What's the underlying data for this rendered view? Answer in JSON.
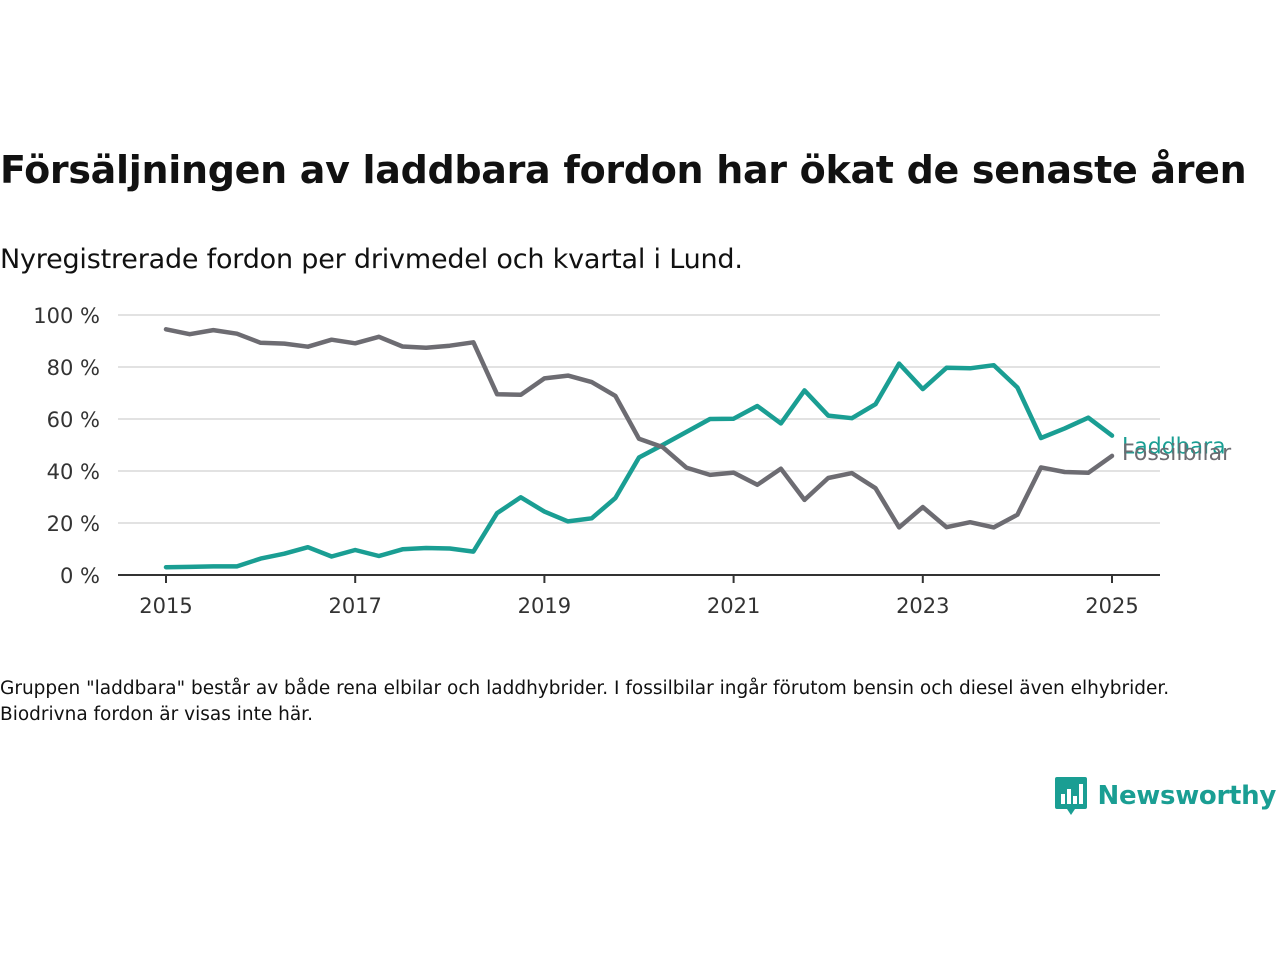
{
  "title": "Försäljningen av laddbara fordon har ökat de senaste åren",
  "subtitle": "Nyregistrerade fordon per drivmedel och kvartal i Lund.",
  "note": "Gruppen \"laddbara\" består av både rena elbilar och laddhybrider. I fossilbilar ingår förutom bensin och diesel även elhybrider. Biodrivna fordon är visas inte här.",
  "brand": {
    "name": "Newsworthy",
    "icon": "newsworthy-logo-icon",
    "color": "#1a9e93"
  },
  "chart_data": {
    "type": "line",
    "title": "",
    "xlabel": "",
    "ylabel": "",
    "ylim": [
      0,
      100
    ],
    "xlim": [
      2014.6,
      2025.5
    ],
    "yticks": [
      0,
      20,
      40,
      60,
      80,
      100
    ],
    "ytick_labels": [
      "0 %",
      "20 %",
      "40 %",
      "60 %",
      "80 %",
      "100 %"
    ],
    "xticks": [
      2015,
      2017,
      2019,
      2021,
      2023,
      2025
    ],
    "xtick_labels": [
      "2015",
      "2017",
      "2019",
      "2021",
      "2023",
      "2025"
    ],
    "grid": "horizontal",
    "legend": "direct labels at line ends",
    "x": [
      2015.0,
      2015.25,
      2015.5,
      2015.75,
      2016.0,
      2016.25,
      2016.5,
      2016.75,
      2017.0,
      2017.25,
      2017.5,
      2017.75,
      2018.0,
      2018.25,
      2018.5,
      2018.75,
      2019.0,
      2019.25,
      2019.5,
      2019.75,
      2020.0,
      2020.25,
      2020.5,
      2020.75,
      2021.0,
      2021.25,
      2021.5,
      2021.75,
      2022.0,
      2022.25,
      2022.5,
      2022.75,
      2023.0,
      2023.25,
      2023.5,
      2023.75,
      2024.0,
      2024.25,
      2024.5,
      2024.75,
      2025.0
    ],
    "series": [
      {
        "name": "Fossilbilar",
        "color": "#6d6c72",
        "values": [
          94.5,
          92.6,
          94.2,
          92.8,
          89.3,
          89.0,
          87.8,
          90.5,
          89.1,
          91.6,
          87.9,
          87.4,
          88.2,
          89.5,
          69.5,
          69.3,
          75.6,
          76.7,
          74.2,
          68.9,
          52.4,
          49.2,
          41.3,
          38.5,
          39.4,
          34.7,
          40.9,
          28.9,
          37.3,
          39.2,
          33.4,
          18.3,
          26.1,
          18.4,
          20.3,
          18.3,
          23.2,
          41.4,
          39.6,
          39.3,
          45.8
        ]
      },
      {
        "name": "Laddbara",
        "color": "#1a9e93",
        "values": [
          3.0,
          3.1,
          3.3,
          3.3,
          6.3,
          8.2,
          10.7,
          7.1,
          9.6,
          7.3,
          9.9,
          10.4,
          10.2,
          9.0,
          23.8,
          29.9,
          24.4,
          20.6,
          21.8,
          29.6,
          45.2,
          50.0,
          55.0,
          60.0,
          60.1,
          65.0,
          58.3,
          71.0,
          61.3,
          60.3,
          65.7,
          81.3,
          71.5,
          79.7,
          79.5,
          80.7,
          72.1,
          52.7,
          56.4,
          60.5,
          53.6
        ]
      }
    ]
  }
}
